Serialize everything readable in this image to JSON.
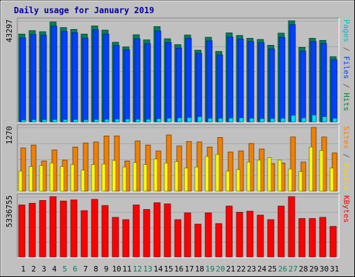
{
  "chart_data": {
    "type": "bar",
    "title": "Daily usage for January 2019",
    "days": [
      "1",
      "2",
      "3",
      "4",
      "5",
      "6",
      "7",
      "8",
      "9",
      "10",
      "11",
      "12",
      "13",
      "14",
      "15",
      "16",
      "17",
      "18",
      "19",
      "20",
      "21",
      "22",
      "23",
      "24",
      "25",
      "26",
      "27",
      "28",
      "29",
      "30",
      "31"
    ],
    "weekend_days": [
      "5",
      "6",
      "12",
      "13",
      "19",
      "20",
      "26",
      "27"
    ],
    "panels": [
      {
        "id": "top",
        "ymax_label": "43297",
        "ymax": 43297,
        "side_labels": [
          {
            "text": "Pages",
            "color": "#00c0c0"
          },
          {
            "text": " / ",
            "color": "#606060"
          },
          {
            "text": "Files",
            "color": "#0040ff"
          },
          {
            "text": " / ",
            "color": "#606060"
          },
          {
            "text": "Hits",
            "color": "#008040"
          }
        ],
        "series": [
          {
            "name": "Hits",
            "color": "#00805a",
            "values": [
              37600,
              39100,
              38600,
              42800,
              40400,
              39600,
              37600,
              41100,
              39300,
              34100,
              32100,
              37300,
              35100,
              40800,
              35600,
              33100,
              37200,
              30700,
              36200,
              30200,
              38100,
              37000,
              35800,
              35300,
              32800,
              38000,
              43300,
              31900,
              35800,
              34900,
              27900
            ]
          },
          {
            "name": "Files",
            "color": "#0040ff",
            "values": [
              36000,
              37400,
              37100,
              41000,
              38700,
              38200,
              35900,
              39500,
              37600,
              32700,
              30900,
              35600,
              33500,
              38900,
              34000,
              31600,
              35800,
              29400,
              34700,
              28700,
              36400,
              35500,
              34400,
              33900,
              31200,
              36200,
              41600,
              30300,
              34400,
              33600,
              26600
            ]
          },
          {
            "name": "Pages",
            "color": "#00e0ff",
            "values": [
              800,
              900,
              900,
              1000,
              1000,
              1000,
              900,
              1000,
              1100,
              1200,
              1200,
              1100,
              1100,
              1300,
              1500,
              1700,
              1800,
              2200,
              1500,
              1500,
              1600,
              1700,
              1500,
              1400,
              1400,
              1500,
              2800,
              1700,
              2900,
              2200,
              1500
            ]
          }
        ]
      },
      {
        "id": "middle",
        "ymax_label": "1270",
        "ymax": 1270,
        "side_labels": [
          {
            "text": "Sites",
            "color": "#ff8000"
          },
          {
            "text": " / ",
            "color": "#606060"
          },
          {
            "text": "Visits",
            "color": "#ffd000"
          }
        ],
        "series": [
          {
            "name": "Visits",
            "color": "#f08000",
            "values": [
              860,
              920,
              600,
              820,
              620,
              880,
              960,
              980,
              1100,
              1100,
              600,
              1000,
              920,
              800,
              1120,
              900,
              990,
              980,
              880,
              1070,
              780,
              800,
              950,
              840,
              550,
              560,
              1080,
              580,
              1270,
              1080,
              760
            ]
          },
          {
            "name": "Sites",
            "color": "#ffff00",
            "values": [
              400,
              490,
              510,
              560,
              490,
              530,
              420,
              530,
              540,
              610,
              480,
              570,
              530,
              640,
              560,
              590,
              460,
              480,
              690,
              730,
              400,
              430,
              580,
              620,
              670,
              620,
              440,
              390,
              880,
              810,
              460
            ]
          }
        ]
      },
      {
        "id": "bottom",
        "ymax_label": "5336755",
        "ymax": 5336755,
        "side_labels": [
          {
            "text": "KBytes",
            "color": "#ff0000"
          }
        ],
        "series": [
          {
            "name": "KBytes",
            "color": "#ff0000",
            "values": [
              4600000,
              4750000,
              5000000,
              5336755,
              4950000,
              5050000,
              4100000,
              5100000,
              4550000,
              3500000,
              3300000,
              4600000,
              4200000,
              4800000,
              4700000,
              3300000,
              3900000,
              2900000,
              3900000,
              2950000,
              4500000,
              3950000,
              4050000,
              3700000,
              3300000,
              4500000,
              5336755,
              3400000,
              3400000,
              3500000,
              2700000
            ]
          }
        ]
      }
    ]
  }
}
